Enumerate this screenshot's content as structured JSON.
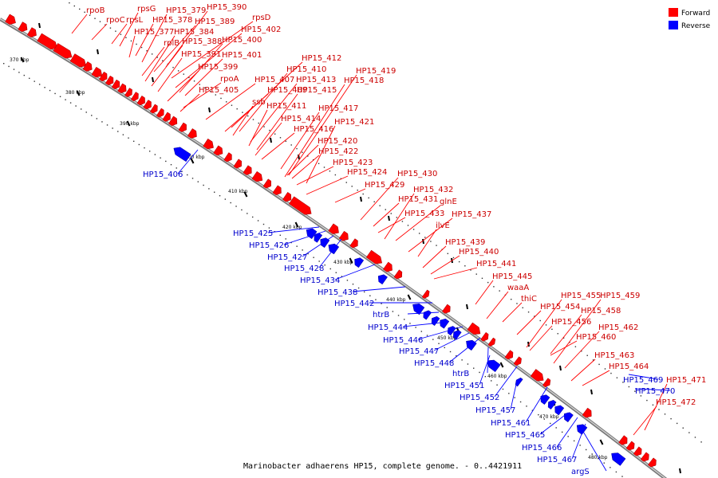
{
  "caption": "Marinobacter adhaerens HP15, complete genome. - 0..4421911",
  "legend": {
    "forward": {
      "label": "Forward",
      "color": "#ff0000"
    },
    "reverse": {
      "label": "Reverse",
      "color": "#0000ff"
    }
  },
  "colors": {
    "forward": "#ff0000",
    "reverse": "#0000ff",
    "backbone": "#888888"
  },
  "ticks": [
    "370 kbp",
    "380 kbp",
    "390 kbp",
    "400 kbp",
    "410 kbp",
    "420 kbp",
    "430 kbp",
    "440 kbp",
    "450 kbp",
    "460 kbp",
    "470 kbp",
    "480 kbp"
  ],
  "forward_labels": [
    "rpoB",
    "rpoC",
    "rpsL",
    "rpsG",
    "HP15_379",
    "HP15_390",
    "HP15_378",
    "HP15_389",
    "rpsD",
    "HP15_377",
    "HP15_384",
    "HP15_402",
    "rplB",
    "HP15_388",
    "HP15_400",
    "HP15_391",
    "HP15_401",
    "HP15_399",
    "rpoA",
    "HP15_405",
    "HP15_412",
    "HP15_410",
    "HP15_419",
    "HP15_407",
    "HP15_413",
    "HP15_418",
    "HP15_409",
    "HP15_415",
    "ssb",
    "HP15_411",
    "HP15_417",
    "HP15_414",
    "HP15_421",
    "HP15_416",
    "HP15_420",
    "HP15_422",
    "HP15_423",
    "HP15_424",
    "HP15_430",
    "HP15_429",
    "HP15_432",
    "HP15_431",
    "glnE",
    "HP15_433",
    "HP15_437",
    "ilvE",
    "HP15_439",
    "HP15_440",
    "HP15_441",
    "HP15_445",
    "waaA",
    "thiC",
    "HP15_455",
    "HP15_459",
    "HP15_454",
    "HP15_458",
    "HP15_456",
    "HP15_462",
    "HP15_460",
    "HP15_463",
    "HP15_464",
    "HP15_471",
    "HP15_472"
  ],
  "reverse_labels": [
    "HP15_406",
    "HP15_425",
    "HP15_426",
    "HP15_427",
    "HP15_428",
    "HP15_434",
    "HP15_438",
    "HP15_442",
    "htrB",
    "HP15_444",
    "HP15_446",
    "HP15_447",
    "HP15_448",
    "htrB",
    "HP15_451",
    "HP15_452",
    "HP15_457",
    "HP15_461",
    "HP15_465",
    "HP15_466",
    "HP15_467",
    "argS",
    "HP15_469",
    "HP15_470"
  ]
}
